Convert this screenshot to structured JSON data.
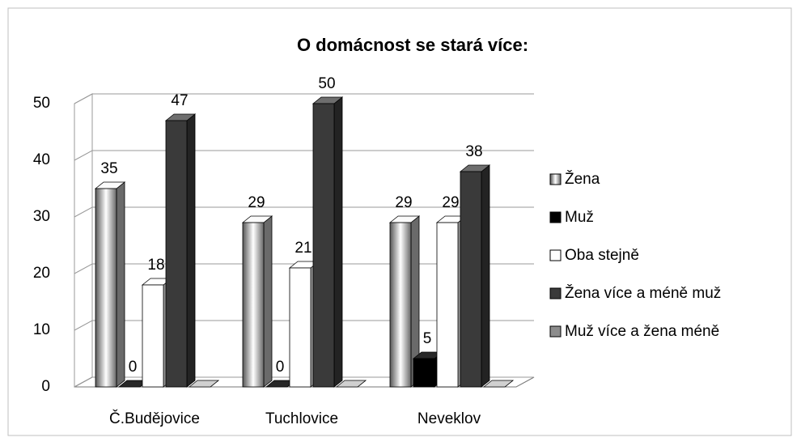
{
  "chart_data": {
    "type": "bar3d",
    "title": "O domácnost se stará více:",
    "categories": [
      "Č.Budějovice",
      "Tuchlovice",
      "Neveklov"
    ],
    "series": [
      {
        "name": "Žena",
        "color": "#b0b0b0",
        "values": [
          35,
          29,
          29
        ],
        "show_labels": true
      },
      {
        "name": "Muž",
        "color": "#000000",
        "values": [
          0,
          0,
          5
        ],
        "show_labels": true
      },
      {
        "name": "Oba stejně",
        "color": "#ffffff",
        "values": [
          18,
          21,
          29
        ],
        "show_labels": true
      },
      {
        "name": "Žena více a méně muž",
        "color": "#3a3a3a",
        "values": [
          47,
          50,
          38
        ],
        "show_labels": true
      },
      {
        "name": "Muž více a žena méně",
        "color": "#8c8c8c",
        "values": [
          0,
          0,
          0
        ],
        "show_labels": false
      }
    ],
    "ylim": [
      0,
      50
    ],
    "yticks": [
      0,
      10,
      20,
      30,
      40,
      50
    ],
    "grid": true,
    "legend": "right"
  }
}
